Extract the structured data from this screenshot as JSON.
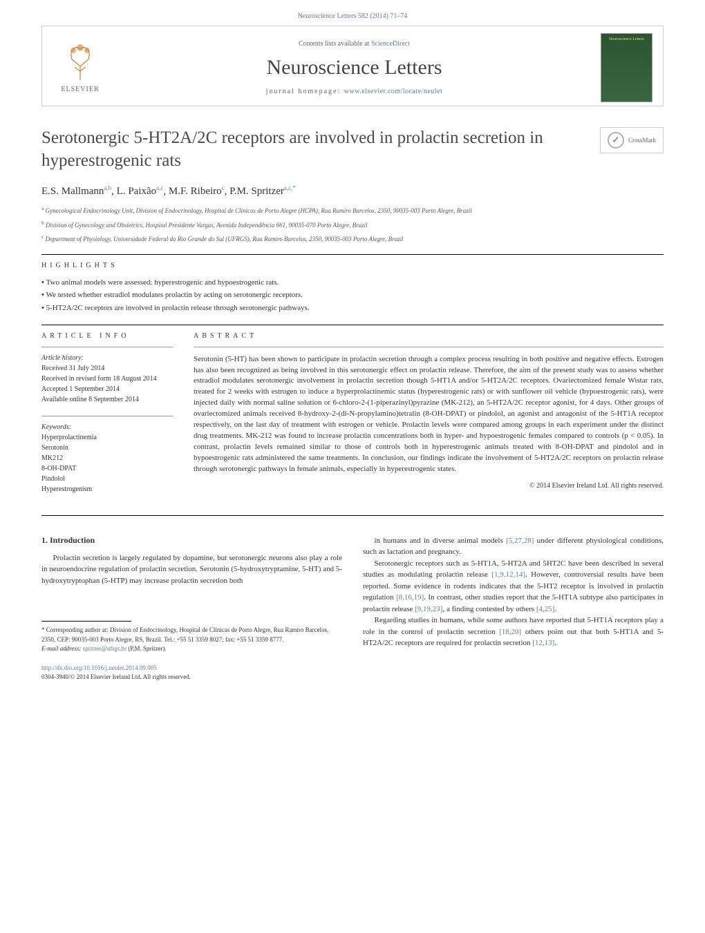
{
  "colors": {
    "link": "#5b7fa6",
    "text": "#333333",
    "title": "#4a4a4a",
    "rule": "#000000",
    "light_rule": "#999999",
    "cover_bg_top": "#2a5530",
    "cover_bg_bottom": "#3a6540",
    "cover_text": "#f0d080"
  },
  "header": {
    "citation": "Neuroscience Letters 582 (2014) 71–74",
    "contents_prefix": "Contents lists available at ",
    "contents_link": "ScienceDirect",
    "journal_name": "Neuroscience Letters",
    "homepage_label": "journal homepage: ",
    "homepage_url": "www.elsevier.com/locate/neulet",
    "publisher": "ELSEVIER",
    "cover_small_title": "Neuroscience Letters"
  },
  "article": {
    "title": "Serotonergic 5-HT2A/2C receptors are involved in prolactin secretion in hyperestrogenic rats",
    "crossmark_label": "CrossMark",
    "authors_html": "E.S. Mallmann",
    "authors": [
      {
        "name": "E.S. Mallmann",
        "sup": "a,b"
      },
      {
        "name": "L. Paixão",
        "sup": "a,c"
      },
      {
        "name": "M.F. Ribeiro",
        "sup": "c"
      },
      {
        "name": "P.M. Spritzer",
        "sup": "a,c,*"
      }
    ],
    "affiliations": [
      {
        "sup": "a",
        "text": "Gynecological Endocrinology Unit, Division of Endocrinology, Hospital de Clínicas de Porto Alegre (HCPA), Rua Ramiro Barcelos, 2350, 90035-003 Porto Alegre, Brazil"
      },
      {
        "sup": "b",
        "text": "Division of Gynecology and Obstetrics, Hospital Presidente Vargas, Avenida Independência 661, 90035-070 Porto Alegre, Brazil"
      },
      {
        "sup": "c",
        "text": "Department of Physiology, Universidade Federal do Rio Grande do Sul (UFRGS), Rua Ramiro Barcelos, 2350, 90035-003 Porto Alegre, Brazil"
      }
    ]
  },
  "highlights": {
    "heading": "HIGHLIGHTS",
    "items": [
      "Two animal models were assessed: hyperestrogenic and hypoestrogenic rats.",
      "We tested whether estradiol modulates prolactin by acting on serotonergic receptors.",
      "5-HT2A/2C receptors are involved in prolactin release through serotonergic pathways."
    ]
  },
  "article_info": {
    "heading": "ARTICLE INFO",
    "history_label": "Article history:",
    "history": [
      "Received 31 July 2014",
      "Received in revised form 18 August 2014",
      "Accepted 1 September 2014",
      "Available online 8 September 2014"
    ],
    "keywords_label": "Keywords:",
    "keywords": [
      "Hyperprolactinemia",
      "Serotonin",
      "MK212",
      "8-OH-DPAT",
      "Pindolol",
      "Hyperestrogenism"
    ]
  },
  "abstract": {
    "heading": "ABSTRACT",
    "text": "Serotonin (5-HT) has been shown to participate in prolactin secretion through a complex process resulting in both positive and negative effects. Estrogen has also been recognized as being involved in this serotonergic effect on prolactin release. Therefore, the aim of the present study was to assess whether estradiol modulates serotonergic involvement in prolactin secretion though 5-HT1A and/or 5-HT2A/2C receptors. Ovariectomized female Wistar rats, treated for 2 weeks with estrogen to induce a hyperprolactinemic status (hyperestrogenic rats) or with sunflower oil vehicle (hypoestrogenic rats), were injected daily with normal saline solution or 6-chloro-2-(1-piperazinyl)pyrazine (MK-212), an 5-HT2A/2C receptor agonist, for 4 days. Other groups of ovariectomized animals received 8-hydroxy-2-(di-N-propylamino)tetralin (8-OH-DPAT) or pindolol, an agonist and antagonist of the 5-HT1A receptor respectively, on the last day of treatment with estrogen or vehicle. Prolactin levels were compared among groups in each experiment under the distinct drug treatments. MK-212 was found to increase prolactin concentrations both in hyper- and hypoestrogenic females compared to controls (p < 0.05). In contrast, prolactin levels remained similar to those of controls both in hyperestrogenic animals treated with 8-OH-DPAT and pindolol and in hypoestrogenic rats administered the same treatments. In conclusion, our findings indicate the involvement of 5-HT2A/2C receptors on prolactin release through serotonergic pathways in female animals, especially in hyperestrogenic states.",
    "copyright": "© 2014 Elsevier Ireland Ltd. All rights reserved."
  },
  "intro": {
    "heading": "1.  Introduction",
    "left_paras": [
      "Prolactin secretion is largely regulated by dopamine, but serotonergic neurons also play a role in neuroendocrine regulation of prolactin secretion. Serotonin (5-hydroxytryptamine, 5-HT) and 5-hydroxytryptophan (5-HTP) may increase prolactin secretion both"
    ],
    "right_paras_html": [
      "in humans and in diverse animal models <a data-name='cite-link' data-interactable='true'>[5,27,28]</a> under different physiological conditions, such as lactation and pregnancy.",
      "Serotonergic receptors such as 5-HT1A, 5-HT2A and 5HT2C have been described in several studies as modulating prolactin release <a data-name='cite-link' data-interactable='true'>[1,9,12,14]</a>. However, controversial results have been reported. Some evidence in rodents indicates that the 5-HT2 receptor is involved in prolactin regulation <a data-name='cite-link' data-interactable='true'>[8,16,19]</a>. In contrast, other studies report that the 5-HT1A subtype also participates in prolactin release <a data-name='cite-link' data-interactable='true'>[9,19,23]</a>, a finding contested by others <a data-name='cite-link' data-interactable='true'>[4,25]</a>.",
      "Regarding studies in humans, while some authors have reported that 5-HT1A receptors play a role in the control of prolactin secretion <a data-name='cite-link' data-interactable='true'>[18,20]</a> others point out that both 5-HT1A and 5-HT2A/2C receptors are required for prolactin secretion <a data-name='cite-link' data-interactable='true'>[12,13]</a>."
    ]
  },
  "footnote": {
    "corresponding": "* Corresponding author at: Division of Endocrinology, Hospital de Clínicas de Porto Alegre, Rua Ramiro Barcelos, 2350, CEP: 90035-003 Porto Alegre, RS, Brazil. Tel.: +55 51 3359 8027; fax: +55 51 3359 8777.",
    "email_label": "E-mail address: ",
    "email": "spritzer@ufrgs.br",
    "email_suffix": " (P.M. Spritzer).",
    "doi_url": "http://dx.doi.org/10.1016/j.neulet.2014.09.005",
    "issn_line": "0304-3940/© 2014 Elsevier Ireland Ltd. All rights reserved."
  }
}
